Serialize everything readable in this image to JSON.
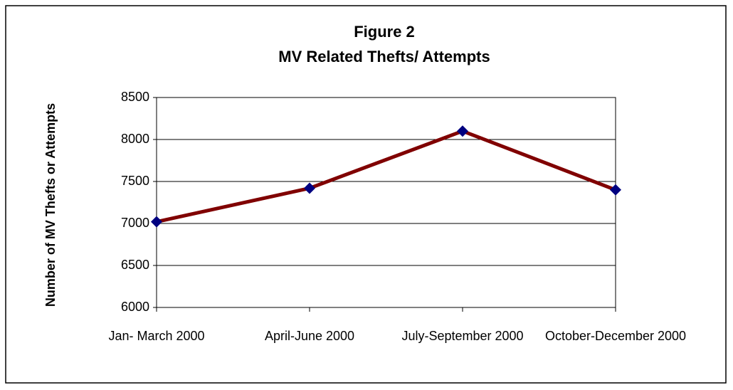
{
  "chart_data": {
    "type": "line",
    "title": "Figure 2",
    "subtitle": "MV Related Thefts/ Attempts",
    "y_label": "Number of MV Thefts or Attempts",
    "categories": [
      "Jan- March 2000",
      "April-June 2000",
      "July-September 2000",
      "October-December 2000"
    ],
    "series": [
      {
        "name": "MV Related Thefts/ Attempts",
        "color": "#800000",
        "marker_color": "#000080",
        "values": [
          7020,
          7420,
          8100,
          7400
        ]
      }
    ],
    "ylim": [
      6000,
      8500
    ],
    "yticks": [
      6000,
      6500,
      7000,
      7500,
      8000,
      8500
    ],
    "grid": true,
    "legend": false
  }
}
